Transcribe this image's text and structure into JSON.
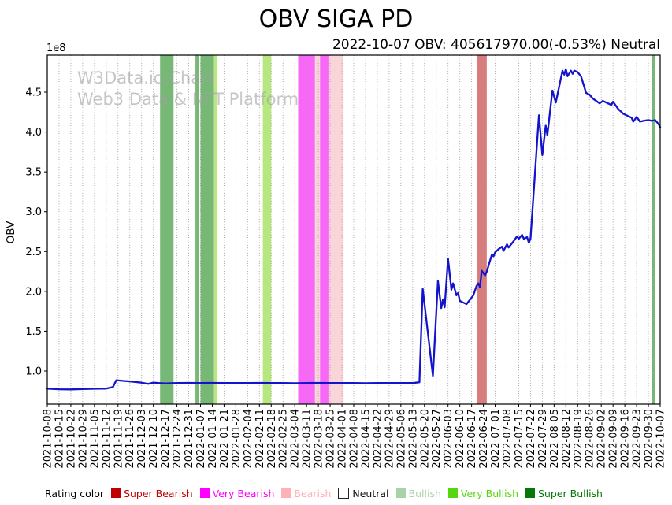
{
  "header": {
    "title": "OBV SIGA PD",
    "subtitle": "2022-10-07 OBV: 405617970.00(-0.53%) Neutral"
  },
  "current_reading": {
    "date": "2022-10-07",
    "obv": "405617970.00",
    "change_pct": "-0.53%",
    "rating": "Neutral"
  },
  "watermark": {
    "line1": "W3Data.io Chart",
    "line2": "Web3 Data & NFT Platform"
  },
  "chart_data": {
    "type": "line",
    "title": "OBV SIGA PD",
    "ylabel": "OBV",
    "y_offset_label": "1e8",
    "values_unit": "1e8",
    "line_color": "#1414cc",
    "grid": "vertical-dotted-weekly",
    "x_start": "2021-10-08",
    "x_end": "2022-10-07",
    "ylim_e8": [
      0.585,
      4.965
    ],
    "y_ticks_e8": [
      1.0,
      1.5,
      2.0,
      2.5,
      3.0,
      3.5,
      4.0,
      4.5
    ],
    "x_tick_labels": [
      "2021-10-08",
      "2021-10-15",
      "2021-10-22",
      "2021-10-29",
      "2021-11-05",
      "2021-11-12",
      "2021-11-19",
      "2021-11-26",
      "2021-12-03",
      "2021-12-10",
      "2021-12-17",
      "2021-12-24",
      "2021-12-31",
      "2022-01-07",
      "2022-01-14",
      "2022-01-21",
      "2022-01-28",
      "2022-02-04",
      "2022-02-11",
      "2022-02-18",
      "2022-02-25",
      "2022-03-04",
      "2022-03-11",
      "2022-03-18",
      "2022-03-25",
      "2022-04-01",
      "2022-04-08",
      "2022-04-15",
      "2022-04-22",
      "2022-04-29",
      "2022-05-06",
      "2022-05-13",
      "2022-05-20",
      "2022-05-27",
      "2022-06-03",
      "2022-06-10",
      "2022-06-17",
      "2022-06-24",
      "2022-07-01",
      "2022-07-08",
      "2022-07-15",
      "2022-07-22",
      "2022-07-29",
      "2022-08-05",
      "2022-08-12",
      "2022-08-19",
      "2022-08-26",
      "2022-09-02",
      "2022-09-09",
      "2022-09-16",
      "2022-09-23",
      "2022-09-30",
      "2022-10-07"
    ],
    "series": [
      {
        "name": "OBV",
        "points_e8": [
          [
            "2021-10-08",
            0.78
          ],
          [
            "2021-10-15",
            0.772
          ],
          [
            "2021-10-22",
            0.77
          ],
          [
            "2021-10-29",
            0.775
          ],
          [
            "2021-11-05",
            0.778
          ],
          [
            "2021-11-12",
            0.78
          ],
          [
            "2021-11-16",
            0.8
          ],
          [
            "2021-11-18",
            0.885
          ],
          [
            "2021-11-23",
            0.875
          ],
          [
            "2021-11-26",
            0.87
          ],
          [
            "2021-12-03",
            0.855
          ],
          [
            "2021-12-07",
            0.84
          ],
          [
            "2021-12-10",
            0.856
          ],
          [
            "2021-12-13",
            0.85
          ],
          [
            "2021-12-17",
            0.845
          ],
          [
            "2021-12-24",
            0.85
          ],
          [
            "2021-12-31",
            0.852
          ],
          [
            "2022-01-07",
            0.85
          ],
          [
            "2022-01-14",
            0.852
          ],
          [
            "2022-01-21",
            0.85
          ],
          [
            "2022-01-28",
            0.85
          ],
          [
            "2022-02-04",
            0.85
          ],
          [
            "2022-02-11",
            0.852
          ],
          [
            "2022-02-18",
            0.85
          ],
          [
            "2022-02-25",
            0.85
          ],
          [
            "2022-03-04",
            0.848
          ],
          [
            "2022-03-11",
            0.85
          ],
          [
            "2022-03-18",
            0.852
          ],
          [
            "2022-03-25",
            0.85
          ],
          [
            "2022-04-01",
            0.85
          ],
          [
            "2022-04-08",
            0.85
          ],
          [
            "2022-04-15",
            0.848
          ],
          [
            "2022-04-22",
            0.85
          ],
          [
            "2022-04-29",
            0.85
          ],
          [
            "2022-05-06",
            0.85
          ],
          [
            "2022-05-13",
            0.85
          ],
          [
            "2022-05-17",
            0.86
          ],
          [
            "2022-05-19",
            2.03
          ],
          [
            "2022-05-25",
            0.94
          ],
          [
            "2022-05-28",
            2.13
          ],
          [
            "2022-05-30",
            1.79
          ],
          [
            "2022-05-31",
            1.9
          ],
          [
            "2022-06-01",
            1.8
          ],
          [
            "2022-06-03",
            2.41
          ],
          [
            "2022-06-05",
            2.02
          ],
          [
            "2022-06-06",
            2.1
          ],
          [
            "2022-06-08",
            1.95
          ],
          [
            "2022-06-09",
            1.98
          ],
          [
            "2022-06-10",
            1.88
          ],
          [
            "2022-06-13",
            1.85
          ],
          [
            "2022-06-14",
            1.84
          ],
          [
            "2022-06-18",
            1.95
          ],
          [
            "2022-06-20",
            2.07
          ],
          [
            "2022-06-21",
            2.1
          ],
          [
            "2022-06-22",
            2.05
          ],
          [
            "2022-06-23",
            2.26
          ],
          [
            "2022-06-25",
            2.2
          ],
          [
            "2022-06-26",
            2.25
          ],
          [
            "2022-06-29",
            2.46
          ],
          [
            "2022-06-30",
            2.44
          ],
          [
            "2022-07-01",
            2.49
          ],
          [
            "2022-07-03",
            2.53
          ],
          [
            "2022-07-05",
            2.56
          ],
          [
            "2022-07-06",
            2.51
          ],
          [
            "2022-07-08",
            2.59
          ],
          [
            "2022-07-09",
            2.55
          ],
          [
            "2022-07-12",
            2.63
          ],
          [
            "2022-07-14",
            2.69
          ],
          [
            "2022-07-15",
            2.66
          ],
          [
            "2022-07-17",
            2.71
          ],
          [
            "2022-07-18",
            2.66
          ],
          [
            "2022-07-20",
            2.68
          ],
          [
            "2022-07-21",
            2.61
          ],
          [
            "2022-07-22",
            2.66
          ],
          [
            "2022-07-27",
            4.21
          ],
          [
            "2022-07-29",
            3.71
          ],
          [
            "2022-07-31",
            4.08
          ],
          [
            "2022-08-01",
            3.96
          ],
          [
            "2022-08-04",
            4.52
          ],
          [
            "2022-08-06",
            4.37
          ],
          [
            "2022-08-10",
            4.77
          ],
          [
            "2022-08-11",
            4.72
          ],
          [
            "2022-08-12",
            4.79
          ],
          [
            "2022-08-13",
            4.7
          ],
          [
            "2022-08-15",
            4.77
          ],
          [
            "2022-08-16",
            4.73
          ],
          [
            "2022-08-17",
            4.77
          ],
          [
            "2022-08-19",
            4.75
          ],
          [
            "2022-08-21",
            4.7
          ],
          [
            "2022-08-24",
            4.49
          ],
          [
            "2022-08-26",
            4.47
          ],
          [
            "2022-08-28",
            4.42
          ],
          [
            "2022-08-30",
            4.39
          ],
          [
            "2022-09-01",
            4.36
          ],
          [
            "2022-09-03",
            4.39
          ],
          [
            "2022-09-06",
            4.36
          ],
          [
            "2022-09-08",
            4.34
          ],
          [
            "2022-09-09",
            4.38
          ],
          [
            "2022-09-12",
            4.29
          ],
          [
            "2022-09-15",
            4.23
          ],
          [
            "2022-09-18",
            4.2
          ],
          [
            "2022-09-20",
            4.18
          ],
          [
            "2022-09-21",
            4.13
          ],
          [
            "2022-09-23",
            4.19
          ],
          [
            "2022-09-25",
            4.13
          ],
          [
            "2022-09-27",
            4.14
          ],
          [
            "2022-09-30",
            4.15
          ],
          [
            "2022-10-02",
            4.14
          ],
          [
            "2022-10-04",
            4.15
          ],
          [
            "2022-10-06",
            4.1
          ],
          [
            "2022-10-07",
            4.06
          ]
        ]
      }
    ],
    "rating_bands": [
      {
        "from": "2021-12-14",
        "to": "2021-12-22",
        "rating": "super_bullish"
      },
      {
        "from": "2022-01-04",
        "to": "2022-01-06",
        "rating": "super_bullish"
      },
      {
        "from": "2022-01-07",
        "to": "2022-01-15",
        "rating": "super_bullish"
      },
      {
        "from": "2022-01-15",
        "to": "2022-01-17",
        "rating": "very_bullish"
      },
      {
        "from": "2022-02-13",
        "to": "2022-02-18",
        "rating": "very_bullish"
      },
      {
        "from": "2022-03-06",
        "to": "2022-03-16",
        "rating": "very_bearish"
      },
      {
        "from": "2022-03-16",
        "to": "2022-03-19",
        "rating": "bearish"
      },
      {
        "from": "2022-03-19",
        "to": "2022-03-24",
        "rating": "very_bearish"
      },
      {
        "from": "2022-03-24",
        "to": "2022-04-02",
        "rating": "bearish"
      },
      {
        "from": "2022-06-20",
        "to": "2022-06-26",
        "rating": "super_bearish"
      },
      {
        "from": "2022-10-02",
        "to": "2022-10-04",
        "rating": "super_bullish"
      }
    ],
    "band_fill_colors": {
      "super_bearish": "#d97c7c",
      "very_bearish": "#f768f7",
      "bearish": "#f9d5da",
      "neutral": "#ffffff",
      "bullish": "#a3d0a3",
      "very_bullish": "#b6e87f",
      "super_bullish": "#77b877"
    }
  },
  "legend": {
    "label": "Rating color",
    "items": [
      {
        "label": "Super Bearish",
        "color": "#c00000"
      },
      {
        "label": "Very Bearish",
        "color": "#ff00ff"
      },
      {
        "label": "Bearish",
        "color": "#ffb1b8"
      },
      {
        "label": "Neutral",
        "color": "#ffffff"
      },
      {
        "label": "Bullish",
        "color": "#a8d3a8"
      },
      {
        "label": "Very Bullish",
        "color": "#56d610"
      },
      {
        "label": "Super Bullish",
        "color": "#077807"
      }
    ]
  }
}
